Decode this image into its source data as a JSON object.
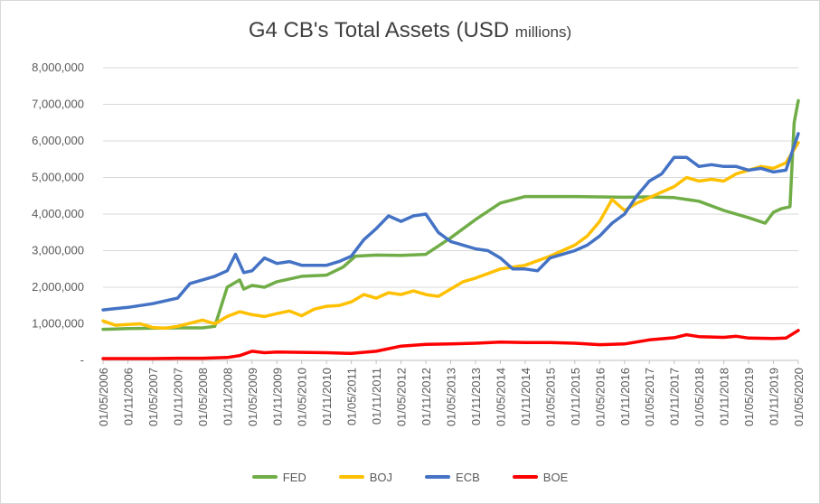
{
  "chart_data": {
    "type": "line",
    "title": "G4 CB's Total Assets (USD",
    "title_small": "millions)",
    "xlabel": "",
    "ylabel": "",
    "ylim": [
      0,
      8000000
    ],
    "y_ticks": [
      "-",
      "1,000,000",
      "2,000,000",
      "3,000,000",
      "4,000,000",
      "5,000,000",
      "6,000,000",
      "7,000,000",
      "8,000,000"
    ],
    "x_ticks": [
      "01/05/2006",
      "01/11/2006",
      "01/05/2007",
      "01/11/2007",
      "01/05/2008",
      "01/11/2008",
      "01/05/2009",
      "01/11/2009",
      "01/05/2010",
      "01/11/2010",
      "01/05/2011",
      "01/11/2011",
      "01/05/2012",
      "01/11/2012",
      "01/05/2013",
      "01/11/2013",
      "01/05/2014",
      "01/11/2014",
      "01/05/2015",
      "01/11/2015",
      "01/05/2016",
      "01/11/2016",
      "01/05/2017",
      "01/11/2017",
      "01/05/2018",
      "01/11/2018",
      "01/05/2019",
      "01/11/2019",
      "01/05/2020"
    ],
    "x_range": [
      "2006-05",
      "2020-05"
    ],
    "grid": "horizontal",
    "legend_position": "bottom",
    "series": [
      {
        "name": "FED",
        "color": "#70ad47",
        "points": [
          [
            "2006-05",
            850000
          ],
          [
            "2006-11",
            870000
          ],
          [
            "2007-05",
            880000
          ],
          [
            "2007-11",
            890000
          ],
          [
            "2008-05",
            890000
          ],
          [
            "2008-08",
            930000
          ],
          [
            "2008-11",
            2000000
          ],
          [
            "2009-02",
            2200000
          ],
          [
            "2009-03",
            1950000
          ],
          [
            "2009-05",
            2050000
          ],
          [
            "2009-08",
            2000000
          ],
          [
            "2009-11",
            2150000
          ],
          [
            "2010-05",
            2300000
          ],
          [
            "2010-11",
            2330000
          ],
          [
            "2011-03",
            2550000
          ],
          [
            "2011-06",
            2850000
          ],
          [
            "2011-11",
            2880000
          ],
          [
            "2012-05",
            2870000
          ],
          [
            "2012-11",
            2900000
          ],
          [
            "2013-05",
            3350000
          ],
          [
            "2013-11",
            3850000
          ],
          [
            "2014-05",
            4300000
          ],
          [
            "2014-11",
            4480000
          ],
          [
            "2015-05",
            4480000
          ],
          [
            "2015-11",
            4480000
          ],
          [
            "2016-05",
            4470000
          ],
          [
            "2016-11",
            4460000
          ],
          [
            "2017-05",
            4470000
          ],
          [
            "2017-11",
            4450000
          ],
          [
            "2018-05",
            4350000
          ],
          [
            "2018-11",
            4100000
          ],
          [
            "2019-05",
            3900000
          ],
          [
            "2019-09",
            3750000
          ],
          [
            "2019-11",
            4050000
          ],
          [
            "2020-01",
            4150000
          ],
          [
            "2020-03",
            4200000
          ],
          [
            "2020-04",
            6500000
          ],
          [
            "2020-05",
            7100000
          ]
        ]
      },
      {
        "name": "BOJ",
        "color": "#ffc000",
        "points": [
          [
            "2006-05",
            1080000
          ],
          [
            "2006-08",
            960000
          ],
          [
            "2006-11",
            980000
          ],
          [
            "2007-02",
            1000000
          ],
          [
            "2007-05",
            900000
          ],
          [
            "2007-08",
            880000
          ],
          [
            "2007-11",
            930000
          ],
          [
            "2008-05",
            1100000
          ],
          [
            "2008-08",
            1000000
          ],
          [
            "2008-11",
            1200000
          ],
          [
            "2009-02",
            1330000
          ],
          [
            "2009-05",
            1250000
          ],
          [
            "2009-08",
            1200000
          ],
          [
            "2009-11",
            1280000
          ],
          [
            "2010-02",
            1350000
          ],
          [
            "2010-05",
            1220000
          ],
          [
            "2010-08",
            1400000
          ],
          [
            "2010-11",
            1480000
          ],
          [
            "2011-02",
            1500000
          ],
          [
            "2011-05",
            1600000
          ],
          [
            "2011-08",
            1800000
          ],
          [
            "2011-11",
            1700000
          ],
          [
            "2012-02",
            1850000
          ],
          [
            "2012-05",
            1800000
          ],
          [
            "2012-08",
            1900000
          ],
          [
            "2012-11",
            1800000
          ],
          [
            "2013-02",
            1750000
          ],
          [
            "2013-05",
            1950000
          ],
          [
            "2013-08",
            2150000
          ],
          [
            "2013-11",
            2250000
          ],
          [
            "2014-05",
            2500000
          ],
          [
            "2014-11",
            2600000
          ],
          [
            "2015-05",
            2850000
          ],
          [
            "2015-11",
            3150000
          ],
          [
            "2016-02",
            3400000
          ],
          [
            "2016-05",
            3800000
          ],
          [
            "2016-08",
            4400000
          ],
          [
            "2016-11",
            4100000
          ],
          [
            "2017-02",
            4300000
          ],
          [
            "2017-05",
            4450000
          ],
          [
            "2017-08",
            4600000
          ],
          [
            "2017-11",
            4750000
          ],
          [
            "2018-02",
            5000000
          ],
          [
            "2018-05",
            4900000
          ],
          [
            "2018-08",
            4950000
          ],
          [
            "2018-11",
            4900000
          ],
          [
            "2019-02",
            5100000
          ],
          [
            "2019-05",
            5200000
          ],
          [
            "2019-08",
            5300000
          ],
          [
            "2019-11",
            5250000
          ],
          [
            "2020-02",
            5400000
          ],
          [
            "2020-05",
            5950000
          ]
        ]
      },
      {
        "name": "ECB",
        "color": "#4472c4",
        "points": [
          [
            "2006-05",
            1380000
          ],
          [
            "2006-11",
            1450000
          ],
          [
            "2007-05",
            1550000
          ],
          [
            "2007-11",
            1700000
          ],
          [
            "2008-02",
            2100000
          ],
          [
            "2008-05",
            2200000
          ],
          [
            "2008-08",
            2300000
          ],
          [
            "2008-11",
            2450000
          ],
          [
            "2009-01",
            2900000
          ],
          [
            "2009-03",
            2400000
          ],
          [
            "2009-05",
            2450000
          ],
          [
            "2009-08",
            2800000
          ],
          [
            "2009-11",
            2650000
          ],
          [
            "2010-02",
            2700000
          ],
          [
            "2010-05",
            2600000
          ],
          [
            "2010-08",
            2600000
          ],
          [
            "2010-11",
            2600000
          ],
          [
            "2011-02",
            2700000
          ],
          [
            "2011-05",
            2850000
          ],
          [
            "2011-08",
            3300000
          ],
          [
            "2011-11",
            3600000
          ],
          [
            "2012-02",
            3950000
          ],
          [
            "2012-05",
            3800000
          ],
          [
            "2012-08",
            3950000
          ],
          [
            "2012-11",
            4000000
          ],
          [
            "2013-02",
            3500000
          ],
          [
            "2013-05",
            3250000
          ],
          [
            "2013-08",
            3150000
          ],
          [
            "2013-11",
            3050000
          ],
          [
            "2014-02",
            3000000
          ],
          [
            "2014-05",
            2800000
          ],
          [
            "2014-08",
            2500000
          ],
          [
            "2014-11",
            2500000
          ],
          [
            "2015-02",
            2450000
          ],
          [
            "2015-05",
            2800000
          ],
          [
            "2015-08",
            2900000
          ],
          [
            "2015-11",
            3000000
          ],
          [
            "2016-02",
            3150000
          ],
          [
            "2016-05",
            3400000
          ],
          [
            "2016-08",
            3750000
          ],
          [
            "2016-11",
            4000000
          ],
          [
            "2017-02",
            4500000
          ],
          [
            "2017-05",
            4900000
          ],
          [
            "2017-08",
            5100000
          ],
          [
            "2017-11",
            5550000
          ],
          [
            "2018-02",
            5550000
          ],
          [
            "2018-05",
            5300000
          ],
          [
            "2018-08",
            5350000
          ],
          [
            "2018-11",
            5300000
          ],
          [
            "2019-02",
            5300000
          ],
          [
            "2019-05",
            5200000
          ],
          [
            "2019-08",
            5250000
          ],
          [
            "2019-11",
            5150000
          ],
          [
            "2020-02",
            5200000
          ],
          [
            "2020-05",
            6200000
          ]
        ]
      },
      {
        "name": "BOE",
        "color": "#ff0000",
        "points": [
          [
            "2006-05",
            50000
          ],
          [
            "2006-11",
            50000
          ],
          [
            "2007-05",
            50000
          ],
          [
            "2007-11",
            60000
          ],
          [
            "2008-05",
            60000
          ],
          [
            "2008-11",
            80000
          ],
          [
            "2009-02",
            130000
          ],
          [
            "2009-05",
            250000
          ],
          [
            "2009-08",
            210000
          ],
          [
            "2009-11",
            230000
          ],
          [
            "2010-05",
            220000
          ],
          [
            "2010-11",
            210000
          ],
          [
            "2011-05",
            190000
          ],
          [
            "2011-11",
            250000
          ],
          [
            "2012-05",
            390000
          ],
          [
            "2012-11",
            440000
          ],
          [
            "2013-05",
            450000
          ],
          [
            "2013-11",
            470000
          ],
          [
            "2014-05",
            500000
          ],
          [
            "2014-11",
            490000
          ],
          [
            "2015-05",
            490000
          ],
          [
            "2015-11",
            470000
          ],
          [
            "2016-05",
            430000
          ],
          [
            "2016-11",
            450000
          ],
          [
            "2017-05",
            560000
          ],
          [
            "2017-11",
            620000
          ],
          [
            "2018-02",
            700000
          ],
          [
            "2018-05",
            650000
          ],
          [
            "2018-11",
            630000
          ],
          [
            "2019-02",
            660000
          ],
          [
            "2019-05",
            610000
          ],
          [
            "2019-11",
            600000
          ],
          [
            "2020-02",
            610000
          ],
          [
            "2020-05",
            820000
          ]
        ]
      }
    ]
  }
}
